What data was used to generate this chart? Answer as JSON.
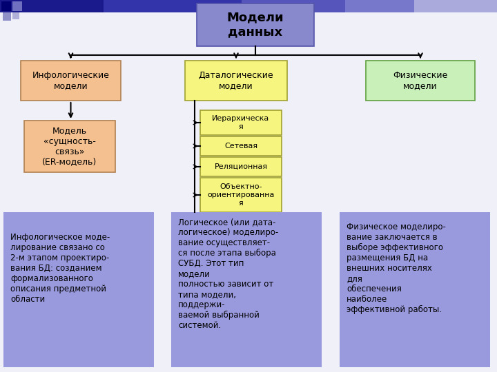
{
  "slide_bg": "#f0f0f8",
  "top_bar_color": "#1a1a8c",
  "title": "Модели\nданных",
  "title_box_color": "#8888cc",
  "title_box_edge": "#5555aa",
  "box1_label": "Инфологические\nмодели",
  "box1_color": "#f5c090",
  "box1_edge": "#b08050",
  "box2_label": "Даталогические\nмодели",
  "box2_color": "#f5f580",
  "box2_edge": "#a0a030",
  "box3_label": "Физические\nмодели",
  "box3_color": "#c8f0b8",
  "box3_edge": "#60a040",
  "box_er_label": "Модель\n«сущность-\nсвязь»\n(ER-модель)",
  "box_er_color": "#f5c090",
  "box_er_edge": "#b08050",
  "sub_labels": [
    "Иерархическа\nя",
    "Сетевая",
    "Реляционная",
    "Объектно-\nориентированна\nя"
  ],
  "sub_color": "#f5f580",
  "sub_edge": "#a0a030",
  "info_box1": "Инфологическое моде-\nлирование связано со\n2-м этапом проектиро-\nвания БД: созданием\nформализованного\nописания предметной\nобласти",
  "info_box2": "Логическое (или дата-\nлогическое) моделиро-\nвание осуществляет-\nся после этапа выбора\nСУБД. Этот тип\nмодели\nполностью зависит от\nтипа модели,\nподдержи-\nваемой выбранной\nсистемой.",
  "info_box3": "Физическое моделиро-\nвание заключается в\nвыборе эффективного\nразмещения БД на\nвнешних носителях\nдля\nобеспечения\nнаиболее\nэффективной работы.",
  "info_box_color": "#9999dd",
  "info_box_edge": "#9999dd"
}
